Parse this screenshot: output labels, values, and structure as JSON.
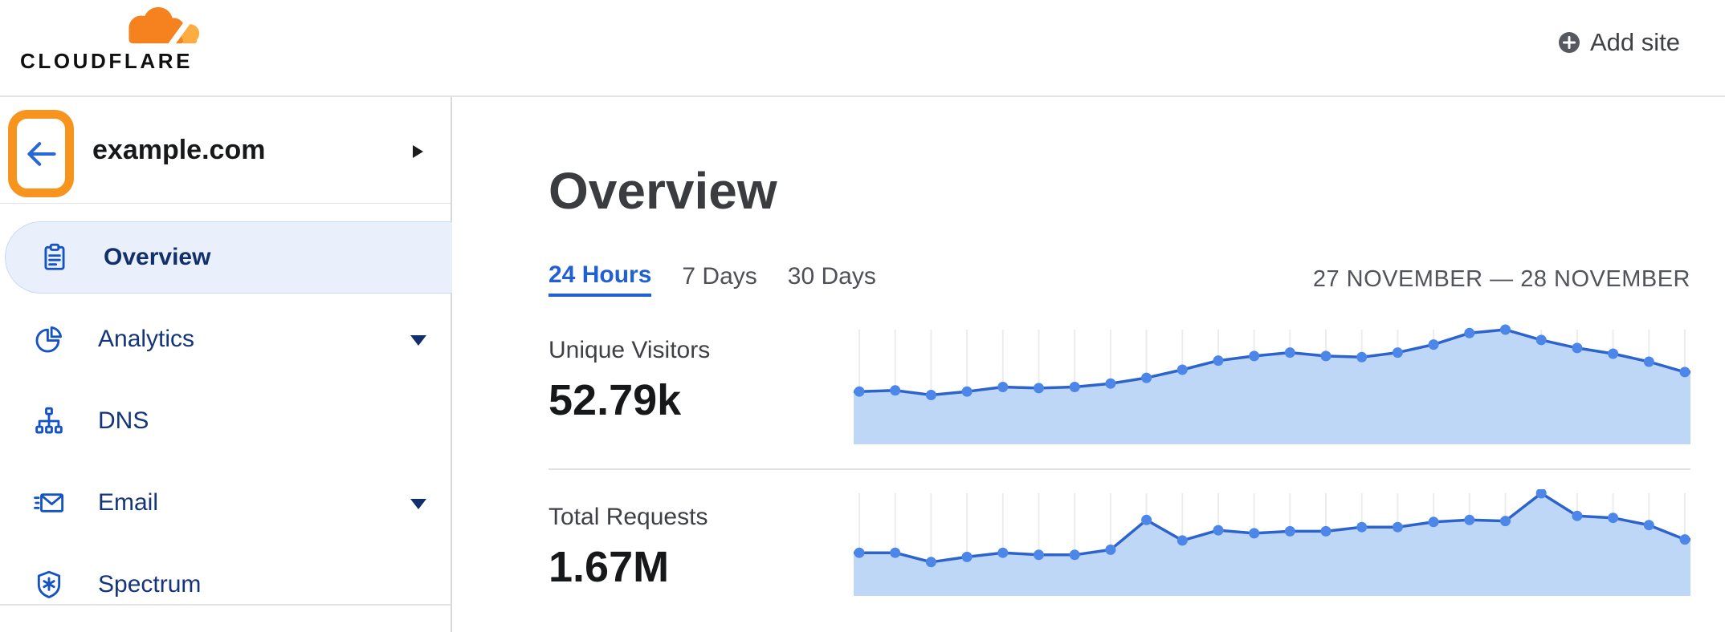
{
  "header": {
    "logo_text": "CLOUDFLARE",
    "add_site_label": "Add site"
  },
  "sidebar": {
    "site_name": "example.com",
    "items": [
      {
        "label": "Overview",
        "icon": "clipboard-icon",
        "active": true,
        "expandable": false
      },
      {
        "label": "Analytics",
        "icon": "pie-chart-icon",
        "active": false,
        "expandable": true
      },
      {
        "label": "DNS",
        "icon": "sitemap-icon",
        "active": false,
        "expandable": false
      },
      {
        "label": "Email",
        "icon": "envelope-icon",
        "active": false,
        "expandable": true
      },
      {
        "label": "Spectrum",
        "icon": "shield-icon",
        "active": false,
        "expandable": false
      }
    ]
  },
  "main": {
    "title": "Overview",
    "tabs": [
      {
        "label": "24 Hours",
        "active": true
      },
      {
        "label": "7 Days",
        "active": false
      },
      {
        "label": "30 Days",
        "active": false
      }
    ],
    "date_range": "27 NOVEMBER — 28 NOVEMBER",
    "metrics": [
      {
        "label": "Unique Visitors",
        "value": "52.79k"
      },
      {
        "label": "Total Requests",
        "value": "1.67M"
      }
    ]
  },
  "annotation": {
    "type": "highlight-ring",
    "target": "back-button",
    "color": "#F7941D"
  },
  "colors": {
    "accent-orange": "#F6821F",
    "logo-light-orange": "#FBAD41",
    "annotation-orange": "#F7941D",
    "link-blue": "#2160D4",
    "nav-icon-blue": "#1553C4",
    "nav-text": "#14357A",
    "nav-text-active": "#112F6B",
    "arrow-blue": "#2667D9",
    "active-pill-bg": "#E9F0FB",
    "active-pill-border": "#C8D9F2",
    "chart-line": "#2D63CC",
    "chart-dot": "#4C86E9",
    "chart-fill": "#BFD7F7",
    "chart-grid": "#ECECEC",
    "divider": "#E3E3E3"
  },
  "chart_data": [
    {
      "type": "area",
      "title": "Unique Visitors",
      "total_shown": "52.79k",
      "x": "24 hourly points, 27 November — 28 November",
      "axes_labeled": false,
      "grid": "vertical-only",
      "legend": "none",
      "ylim": [
        0,
        100
      ],
      "values_relative": [
        46,
        47,
        43,
        46,
        50,
        49,
        50,
        53,
        58,
        65,
        73,
        77,
        80,
        77,
        76,
        80,
        87,
        97,
        100,
        91,
        84,
        79,
        72,
        63
      ]
    },
    {
      "type": "area",
      "title": "Total Requests",
      "total_shown": "1.67M",
      "x": "24 hourly points, 27 November — 28 November",
      "axes_labeled": false,
      "grid": "vertical-only",
      "legend": "none",
      "ylim": [
        0,
        100
      ],
      "values_relative": [
        42,
        42,
        33,
        38,
        42,
        40,
        40,
        45,
        74,
        54,
        64,
        61,
        63,
        63,
        67,
        67,
        72,
        74,
        73,
        100,
        78,
        76,
        69,
        55
      ]
    }
  ]
}
